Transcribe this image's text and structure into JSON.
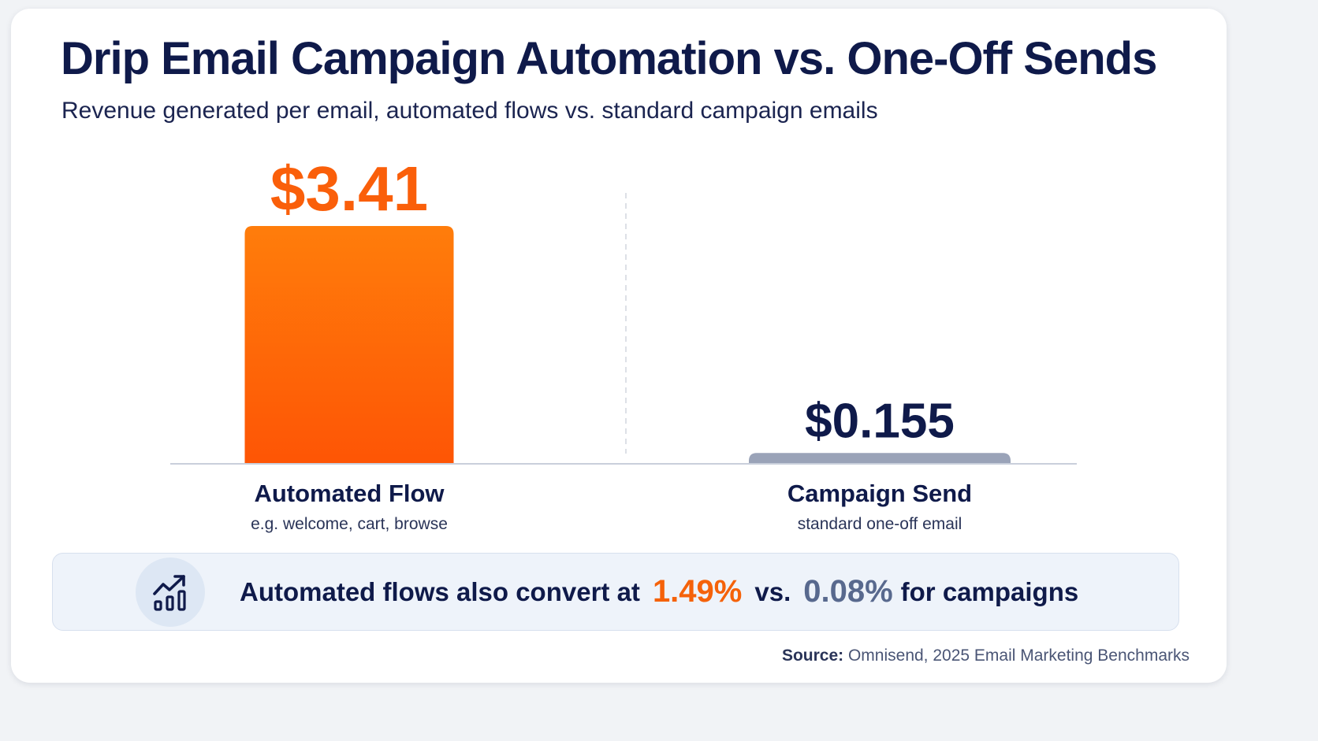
{
  "title": "Drip Email Campaign Automation vs. One-Off Sends",
  "subtitle": "Revenue generated per email, automated flows vs. standard campaign emails",
  "colors": {
    "primary": "#fa5f0a",
    "secondary": "#9aa3b8",
    "navy": "#0f1a4a"
  },
  "chart_data": {
    "type": "bar",
    "categories": [
      "Automated Flow",
      "Campaign Send"
    ],
    "category_notes": [
      "e.g. welcome, cart, browse",
      "standard one-off email"
    ],
    "values": [
      3.41,
      0.155
    ],
    "value_labels": [
      "$3.41",
      "$0.155"
    ],
    "title": "Drip Email Campaign Automation vs. One-Off Sends",
    "subtitle": "Revenue generated per email, automated flows vs. standard campaign emails",
    "xlabel": "",
    "ylabel": "",
    "ylim": [
      0,
      3.41
    ],
    "grid": false,
    "legend": "none"
  },
  "banner": {
    "icon": "chart-trend-up-icon",
    "text_before": "Automated flows also convert at",
    "flow_rate": "1.49%",
    "vs": "vs.",
    "campaign_rate": "0.08%",
    "text_after": "for campaigns"
  },
  "source": {
    "label": "Source:",
    "text": "Omnisend, 2025 Email Marketing Benchmarks"
  }
}
